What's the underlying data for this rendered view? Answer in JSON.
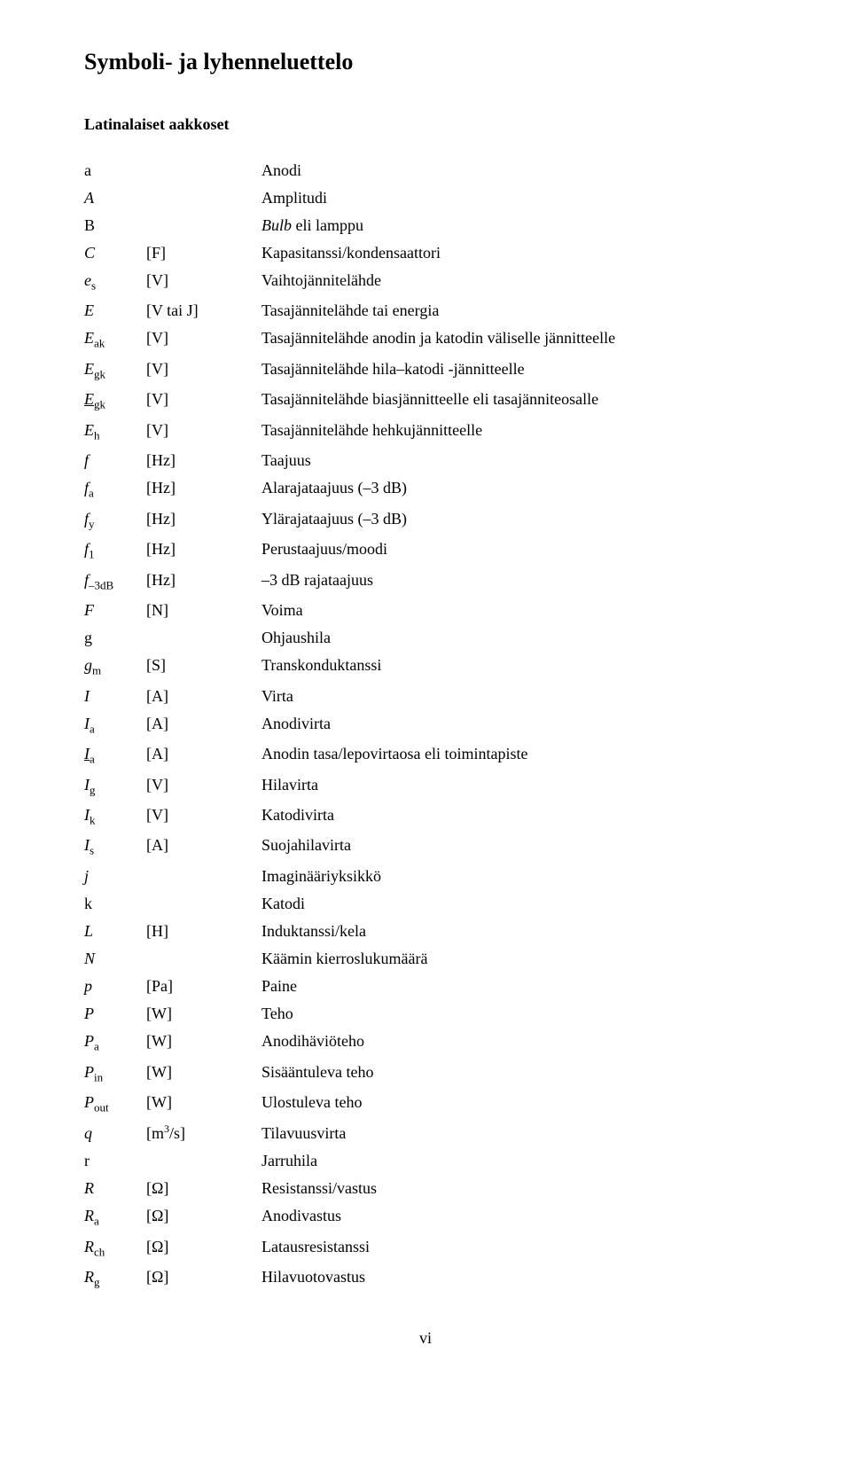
{
  "title": "Symboli- ja lyhenneluettelo",
  "subsection": "Latinalaiset aakkoset",
  "colors": {
    "background": "#ffffff",
    "text": "#000000"
  },
  "typography": {
    "title_fontsize": 26,
    "sub_fontsize": 18,
    "body_fontsize": 18,
    "font_family": "Times New Roman"
  },
  "layout": {
    "col_sym_width": 70,
    "col_unit_width": 130
  },
  "rows": [
    {
      "sym_raw": "a",
      "sym_html": "<span class='plain'>a</span>",
      "unit": "",
      "desc": "Anodi"
    },
    {
      "sym_raw": "A",
      "sym_html": "A",
      "unit": "",
      "desc": "Amplitudi"
    },
    {
      "sym_raw": "B",
      "sym_html": "<span class='plain'>B</span>",
      "unit": "",
      "desc_html": "<span class='italic'>Bulb</span> eli lamppu"
    },
    {
      "sym_raw": "C",
      "sym_html": "C",
      "unit": "[F]",
      "desc": "Kapasitanssi/kondensaattori"
    },
    {
      "sym_raw": "es",
      "sym_html": "e<sub>s</sub>",
      "unit": "[V]",
      "desc": "Vaihtojännitelähde"
    },
    {
      "sym_raw": "E",
      "sym_html": "E",
      "unit": "[V tai J]",
      "desc": "Tasajännitelähde tai energia"
    },
    {
      "sym_raw": "Eak",
      "sym_html": "E<sub>ak</sub>",
      "unit": "[V]",
      "desc": "Tasajännitelähde anodin ja katodin väliselle jännitteelle"
    },
    {
      "sym_raw": "Egk",
      "sym_html": "E<sub>gk</sub>",
      "unit": "[V]",
      "desc": "Tasajännitelähde hila–katodi -jännitteelle"
    },
    {
      "sym_raw": "Egk_",
      "sym_html": "<span class='underline'>E</span><sub>gk</sub>",
      "unit": "[V]",
      "desc": "Tasajännitelähde biasjännitteelle eli tasajänniteosalle"
    },
    {
      "sym_raw": "Eh",
      "sym_html": "E<sub>h</sub>",
      "unit": "[V]",
      "desc": "Tasajännitelähde hehkujännitteelle"
    },
    {
      "sym_raw": "f",
      "sym_html": "f",
      "unit": "[Hz]",
      "desc": "Taajuus"
    },
    {
      "sym_raw": "fa",
      "sym_html": "f<sub>a</sub>",
      "unit": "[Hz]",
      "desc": "Alarajataajuus (–3 dB)"
    },
    {
      "sym_raw": "fy",
      "sym_html": "f<sub>y</sub>",
      "unit": "[Hz]",
      "desc": "Ylärajataajuus (–3 dB)"
    },
    {
      "sym_raw": "f1",
      "sym_html": "f<sub>1</sub>",
      "unit": "[Hz]",
      "desc": "Perustaajuus/moodi"
    },
    {
      "sym_raw": "f-3dB",
      "sym_html": "f<sub>–3dB</sub>",
      "unit": "[Hz]",
      "desc": "–3 dB rajataajuus"
    },
    {
      "sym_raw": "F",
      "sym_html": "F",
      "unit": "[N]",
      "desc": "Voima"
    },
    {
      "sym_raw": "g",
      "sym_html": "<span class='plain'>g</span>",
      "unit": "",
      "desc": "Ohjaushila"
    },
    {
      "sym_raw": "gm",
      "sym_html": "g<sub>m</sub>",
      "unit": "[S]",
      "desc": "Transkonduktanssi"
    },
    {
      "sym_raw": "I",
      "sym_html": "I",
      "unit": "[A]",
      "desc": "Virta"
    },
    {
      "sym_raw": "Ia",
      "sym_html": "I<sub>a</sub>",
      "unit": "[A]",
      "desc": "Anodivirta"
    },
    {
      "sym_raw": "Ia_",
      "sym_html": "<span class='underline'>I</span><sub>a</sub>",
      "unit": "[A]",
      "desc": "Anodin tasa/lepovirtaosa eli toimintapiste"
    },
    {
      "sym_raw": "Ig",
      "sym_html": "I<sub>g</sub>",
      "unit": "[V]",
      "desc": "Hilavirta"
    },
    {
      "sym_raw": "Ik",
      "sym_html": "I<sub>k</sub>",
      "unit": "[V]",
      "desc": "Katodivirta"
    },
    {
      "sym_raw": "Is",
      "sym_html": "I<sub>s</sub>",
      "unit": "[A]",
      "desc": "Suojahilavirta"
    },
    {
      "sym_raw": "j",
      "sym_html": "j",
      "unit": "",
      "desc": "Imaginääriyksikkö"
    },
    {
      "sym_raw": "k",
      "sym_html": "<span class='plain'>k</span>",
      "unit": "",
      "desc": "Katodi"
    },
    {
      "sym_raw": "L",
      "sym_html": "L",
      "unit": "[H]",
      "desc": "Induktanssi/kela"
    },
    {
      "sym_raw": "N",
      "sym_html": "N",
      "unit": "",
      "desc": "Käämin kierroslukumäärä"
    },
    {
      "sym_raw": "p",
      "sym_html": "p",
      "unit": "[Pa]",
      "desc": "Paine"
    },
    {
      "sym_raw": "P",
      "sym_html": "P",
      "unit": "[W]",
      "desc": "Teho"
    },
    {
      "sym_raw": "Pa",
      "sym_html": "P<sub>a</sub>",
      "unit": "[W]",
      "desc": "Anodihäviöteho"
    },
    {
      "sym_raw": "Pin",
      "sym_html": "P<sub>in</sub>",
      "unit": "[W]",
      "desc": "Sisääntuleva teho"
    },
    {
      "sym_raw": "Pout",
      "sym_html": "P<sub>out</sub>",
      "unit": "[W]",
      "desc": "Ulostuleva teho"
    },
    {
      "sym_raw": "q",
      "sym_html": "q",
      "unit_html": "[m<span class='sup'>3</span>/s]",
      "desc": "Tilavuusvirta"
    },
    {
      "sym_raw": "r",
      "sym_html": "<span class='plain'>r</span>",
      "unit": "",
      "desc": "Jarruhila"
    },
    {
      "sym_raw": "R",
      "sym_html": "R",
      "unit": "[Ω]",
      "desc": "Resistanssi/vastus"
    },
    {
      "sym_raw": "Ra",
      "sym_html": "R<sub>a</sub>",
      "unit": "[Ω]",
      "desc": "Anodivastus"
    },
    {
      "sym_raw": "Rch",
      "sym_html": "R<sub>ch</sub>",
      "unit": "[Ω]",
      "desc": "Latausresistanssi"
    },
    {
      "sym_raw": "Rg",
      "sym_html": "R<sub>g</sub>",
      "unit": "[Ω]",
      "desc": "Hilavuotovastus"
    }
  ],
  "page_number": "vi"
}
